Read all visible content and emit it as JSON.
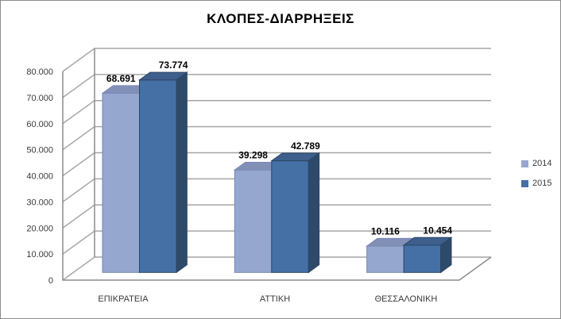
{
  "chart_data": {
    "type": "bar",
    "variant": "3d-clustered-column",
    "title": "ΚΛΟΠΕΣ-ΔΙΑΡΡΗΞΕΙΣ",
    "categories": [
      "ΕΠΙΚΡΑΤΕΙΑ",
      "ΑΤΤΙΚΗ",
      "ΘΕΣΣΑΛΟΝΙΚΗ"
    ],
    "series": [
      {
        "name": "2014",
        "values": [
          68691,
          39298,
          10116
        ],
        "labels": [
          "68.691",
          "39.298",
          "10.116"
        ],
        "front_color": "#95A7CE",
        "top_color": "#8290B8",
        "side_color": "#6F80A9",
        "edge_color": "#7888B4"
      },
      {
        "name": "2015",
        "values": [
          73774,
          42789,
          10454
        ],
        "labels": [
          "73.774",
          "42.789",
          "10.454"
        ],
        "front_color": "#4470A6",
        "top_color": "#3E5F8C",
        "side_color": "#2E4A6B",
        "edge_color": "#2B4665"
      }
    ],
    "y_axis": {
      "min": 0,
      "max": 80000,
      "step": 10000,
      "tick_labels": [
        "0",
        "10.000",
        "20.000",
        "30.000",
        "40.000",
        "50.000",
        "60.000",
        "70.000",
        "80.000"
      ]
    },
    "legend": {
      "position": "right",
      "entries": [
        "2014",
        "2015"
      ]
    },
    "grid": true,
    "style": {
      "grid_color": "#A6A6A6",
      "axis_color": "#8C8C8C",
      "background": "#FFFFFF"
    }
  }
}
